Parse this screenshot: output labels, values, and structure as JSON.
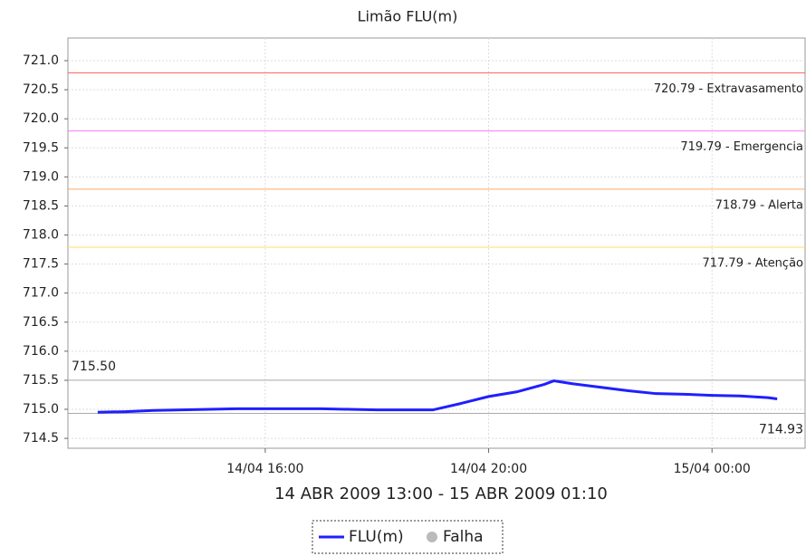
{
  "chart_data": {
    "type": "line",
    "title": "Limão FLU(m)",
    "xlabel": "14 ABR 2009 13:00 - 15 ABR 2009 01:10",
    "x": [
      "2009-04-14T13:00",
      "2009-04-14T13:30",
      "2009-04-14T14:00",
      "2009-04-14T14:30",
      "2009-04-14T15:00",
      "2009-04-14T15:30",
      "2009-04-14T16:00",
      "2009-04-14T16:30",
      "2009-04-14T17:00",
      "2009-04-14T17:30",
      "2009-04-14T18:00",
      "2009-04-14T18:30",
      "2009-04-14T19:00",
      "2009-04-14T19:30",
      "2009-04-14T20:00",
      "2009-04-14T20:30",
      "2009-04-14T21:00",
      "2009-04-14T21:10",
      "2009-04-14T21:30",
      "2009-04-14T22:00",
      "2009-04-14T22:30",
      "2009-04-14T23:00",
      "2009-04-14T23:30",
      "2009-04-15T00:00",
      "2009-04-15T00:30",
      "2009-04-15T01:00",
      "2009-04-15T01:10"
    ],
    "series": [
      {
        "name": "FLU(m)",
        "color": "#1f1fff",
        "values": [
          714.95,
          714.96,
          714.98,
          714.99,
          715.0,
          715.01,
          715.01,
          715.01,
          715.01,
          715.0,
          714.99,
          714.99,
          714.99,
          715.1,
          715.22,
          715.3,
          715.43,
          715.49,
          715.44,
          715.38,
          715.32,
          715.27,
          715.26,
          715.24,
          715.23,
          715.2,
          715.18
        ]
      }
    ],
    "legend_extra": {
      "name": "Falha",
      "color": "#bbbbbb"
    },
    "thresholds": [
      {
        "value": 720.79,
        "label": "720.79 - Extravasamento",
        "color": "#ff6666"
      },
      {
        "value": 719.79,
        "label": "719.79 - Emergencia",
        "color": "#ff77ff"
      },
      {
        "value": 718.79,
        "label": "718.79 - Alerta",
        "color": "#ffaa66"
      },
      {
        "value": 717.79,
        "label": "717.79 - Atenção",
        "color": "#ffdd66"
      }
    ],
    "markers": [
      {
        "value": 715.5,
        "label": "715.50",
        "color": "#aaaaaa"
      },
      {
        "value": 714.93,
        "label": "714.93",
        "color": "#aaaaaa"
      }
    ],
    "xlim": [
      "2009-04-14T12:28",
      "2009-04-15T01:40"
    ],
    "xticks": [
      {
        "value": "2009-04-14T16:00",
        "label": "14/04 16:00"
      },
      {
        "value": "2009-04-14T20:00",
        "label": "14/04 20:00"
      },
      {
        "value": "2009-04-15T00:00",
        "label": "15/04 00:00"
      }
    ],
    "ylim": [
      714.33,
      721.39
    ],
    "yticks": [
      {
        "value": 714.5,
        "label": "714.5"
      },
      {
        "value": 715,
        "label": "715.0"
      },
      715.5,
      {
        "value": 716,
        "label": "716.0"
      },
      716.5,
      {
        "value": 717,
        "label": "717.0"
      },
      717.5,
      {
        "value": 718,
        "label": "718.0"
      },
      718.5,
      {
        "value": 719,
        "label": "719.0"
      },
      719.5,
      {
        "value": 720,
        "label": "720.0"
      },
      720.5,
      {
        "value": 721,
        "label": "721.0"
      }
    ],
    "grid": true
  }
}
